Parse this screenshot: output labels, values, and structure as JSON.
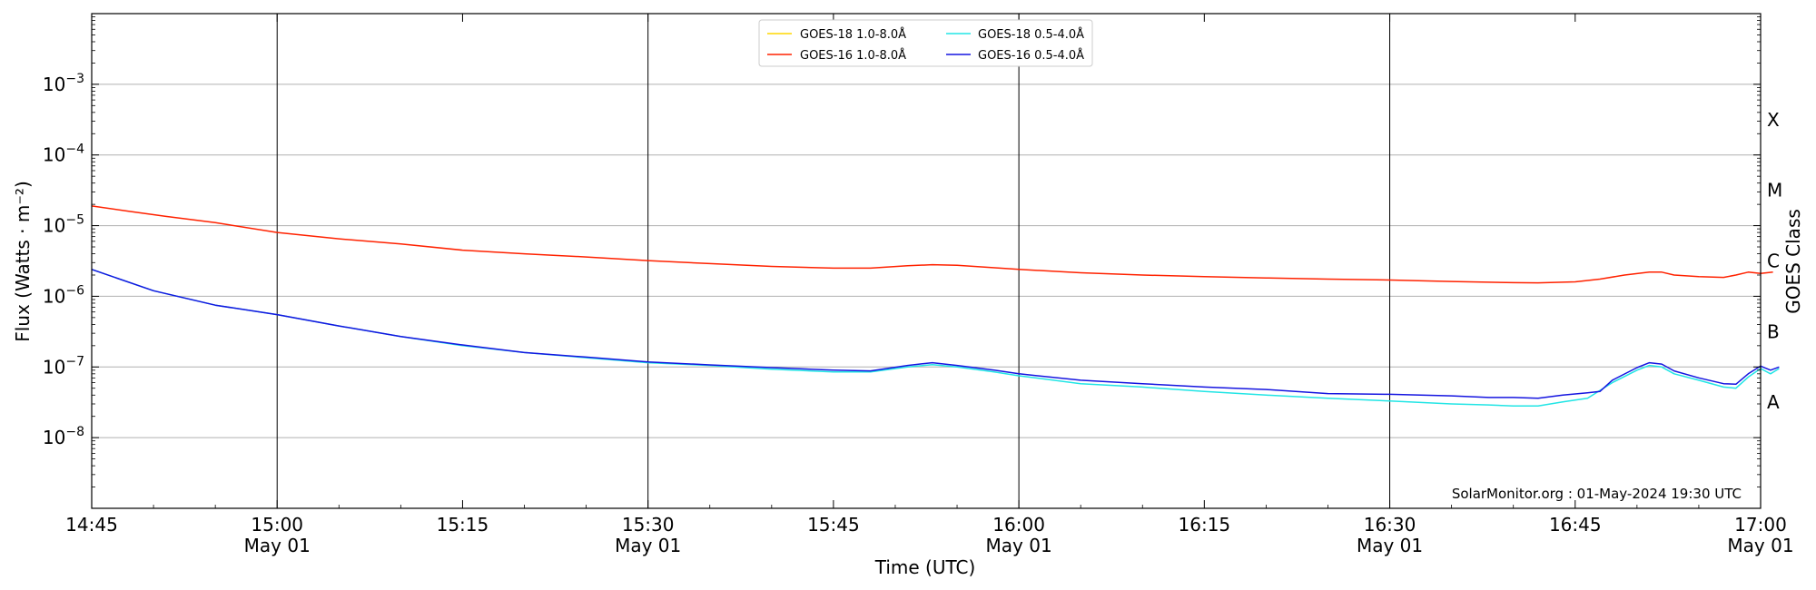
{
  "chart_data": {
    "type": "line",
    "xlabel": "Time (UTC)",
    "ylabel": "Flux (Watts · m⁻²)",
    "y2label": "GOES Class",
    "yscale": "log",
    "xlim": [
      "14:45",
      "17:00"
    ],
    "ylim": [
      1e-09,
      0.01
    ],
    "grid": "horizontal major gridlines at each decade",
    "x_ticks": [
      {
        "t": 0,
        "label": "14:45",
        "date": ""
      },
      {
        "t": 15,
        "label": "15:00",
        "date": "May 01"
      },
      {
        "t": 30,
        "label": "15:15",
        "date": ""
      },
      {
        "t": 45,
        "label": "15:30",
        "date": "May 01"
      },
      {
        "t": 60,
        "label": "15:45",
        "date": ""
      },
      {
        "t": 75,
        "label": "16:00",
        "date": "May 01"
      },
      {
        "t": 90,
        "label": "16:15",
        "date": ""
      },
      {
        "t": 105,
        "label": "16:30",
        "date": "May 01"
      },
      {
        "t": 120,
        "label": "16:45",
        "date": ""
      },
      {
        "t": 135,
        "label": "17:00",
        "date": "May 01"
      }
    ],
    "y_ticks": [
      {
        "exp": -8,
        "label": "10",
        "sup": "−8"
      },
      {
        "exp": -7,
        "label": "10",
        "sup": "−7"
      },
      {
        "exp": -6,
        "label": "10",
        "sup": "−6"
      },
      {
        "exp": -5,
        "label": "10",
        "sup": "−5"
      },
      {
        "exp": -4,
        "label": "10",
        "sup": "−4"
      },
      {
        "exp": -3,
        "label": "10",
        "sup": "−3"
      }
    ],
    "goes_classes": [
      {
        "label": "A",
        "exp": -7.5
      },
      {
        "label": "B",
        "exp": -6.5
      },
      {
        "label": "C",
        "exp": -5.5
      },
      {
        "label": "M",
        "exp": -4.5
      },
      {
        "label": "X",
        "exp": -3.5
      }
    ],
    "vertical_lines": [
      "15:00",
      "15:30",
      "16:00",
      "16:30"
    ],
    "legend_position": "top-center",
    "credit": "SolarMonitor.org : 01-May-2024 19:30 UTC",
    "series": [
      {
        "name": "GOES-18 1.0-8.0Å",
        "color": "#FFD700",
        "points": []
      },
      {
        "name": "GOES-16 1.0-8.0Å",
        "color": "#FF2200",
        "points": [
          [
            0,
            1.9e-05
          ],
          [
            3,
            1.6e-05
          ],
          [
            6,
            1.35e-05
          ],
          [
            10,
            1.1e-05
          ],
          [
            15,
            8e-06
          ],
          [
            20,
            6.5e-06
          ],
          [
            25,
            5.5e-06
          ],
          [
            30,
            4.5e-06
          ],
          [
            35,
            4e-06
          ],
          [
            40,
            3.6e-06
          ],
          [
            45,
            3.2e-06
          ],
          [
            50,
            2.9e-06
          ],
          [
            55,
            2.65e-06
          ],
          [
            60,
            2.5e-06
          ],
          [
            63,
            2.5e-06
          ],
          [
            66,
            2.7e-06
          ],
          [
            68,
            2.8e-06
          ],
          [
            70,
            2.75e-06
          ],
          [
            75,
            2.4e-06
          ],
          [
            80,
            2.15e-06
          ],
          [
            85,
            2e-06
          ],
          [
            90,
            1.9e-06
          ],
          [
            95,
            1.82e-06
          ],
          [
            100,
            1.75e-06
          ],
          [
            105,
            1.7e-06
          ],
          [
            110,
            1.62e-06
          ],
          [
            115,
            1.56e-06
          ],
          [
            117,
            1.55e-06
          ],
          [
            120,
            1.6e-06
          ],
          [
            122,
            1.75e-06
          ],
          [
            124,
            2e-06
          ],
          [
            126,
            2.2e-06
          ],
          [
            127,
            2.2e-06
          ],
          [
            128,
            2e-06
          ],
          [
            130,
            1.9e-06
          ],
          [
            132,
            1.85e-06
          ],
          [
            133,
            2e-06
          ],
          [
            134,
            2.2e-06
          ],
          [
            135,
            2.1e-06
          ],
          [
            136,
            2.2e-06
          ]
        ]
      },
      {
        "name": "GOES-18 0.5-4.0Å",
        "color": "#22E5E5",
        "points": [
          [
            0,
            2.4e-06
          ],
          [
            5,
            1.2e-06
          ],
          [
            10,
            7.5e-07
          ],
          [
            15,
            5.5e-07
          ],
          [
            20,
            3.8e-07
          ],
          [
            25,
            2.7e-07
          ],
          [
            30,
            2e-07
          ],
          [
            35,
            1.6e-07
          ],
          [
            40,
            1.35e-07
          ],
          [
            45,
            1.15e-07
          ],
          [
            50,
            1.05e-07
          ],
          [
            55,
            9.3e-08
          ],
          [
            60,
            8.5e-08
          ],
          [
            63,
            8.5e-08
          ],
          [
            66,
            1e-07
          ],
          [
            68,
            1.08e-07
          ],
          [
            70,
            1e-07
          ],
          [
            73,
            8.5e-08
          ],
          [
            75,
            7.5e-08
          ],
          [
            80,
            5.8e-08
          ],
          [
            85,
            5.2e-08
          ],
          [
            90,
            4.5e-08
          ],
          [
            95,
            4e-08
          ],
          [
            100,
            3.6e-08
          ],
          [
            105,
            3.3e-08
          ],
          [
            110,
            3e-08
          ],
          [
            113,
            2.9e-08
          ],
          [
            115,
            2.8e-08
          ],
          [
            117,
            2.8e-08
          ],
          [
            119,
            3.2e-08
          ],
          [
            121,
            3.6e-08
          ],
          [
            123,
            6e-08
          ],
          [
            125,
            9e-08
          ],
          [
            126,
            1.05e-07
          ],
          [
            127,
            1e-07
          ],
          [
            128,
            8e-08
          ],
          [
            130,
            6.5e-08
          ],
          [
            132,
            5.2e-08
          ],
          [
            133,
            5e-08
          ],
          [
            134,
            7.2e-08
          ],
          [
            135,
            9.5e-08
          ],
          [
            135.8,
            8e-08
          ],
          [
            136.5,
            9.5e-08
          ]
        ]
      },
      {
        "name": "GOES-16 0.5-4.0Å",
        "color": "#1515E0",
        "points": [
          [
            0,
            2.4e-06
          ],
          [
            5,
            1.2e-06
          ],
          [
            10,
            7.5e-07
          ],
          [
            15,
            5.5e-07
          ],
          [
            20,
            3.8e-07
          ],
          [
            25,
            2.7e-07
          ],
          [
            30,
            2.05e-07
          ],
          [
            35,
            1.6e-07
          ],
          [
            40,
            1.38e-07
          ],
          [
            45,
            1.18e-07
          ],
          [
            50,
            1.07e-07
          ],
          [
            55,
            9.8e-08
          ],
          [
            60,
            9e-08
          ],
          [
            63,
            8.8e-08
          ],
          [
            66,
            1.05e-07
          ],
          [
            68,
            1.15e-07
          ],
          [
            70,
            1.05e-07
          ],
          [
            73,
            9e-08
          ],
          [
            75,
            8e-08
          ],
          [
            80,
            6.5e-08
          ],
          [
            85,
            5.8e-08
          ],
          [
            90,
            5.2e-08
          ],
          [
            95,
            4.8e-08
          ],
          [
            100,
            4.2e-08
          ],
          [
            105,
            4.1e-08
          ],
          [
            110,
            3.9e-08
          ],
          [
            113,
            3.7e-08
          ],
          [
            115,
            3.7e-08
          ],
          [
            117,
            3.6e-08
          ],
          [
            119,
            4e-08
          ],
          [
            121,
            4.3e-08
          ],
          [
            122,
            4.5e-08
          ],
          [
            123,
            6.5e-08
          ],
          [
            125,
            9.8e-08
          ],
          [
            126,
            1.15e-07
          ],
          [
            127,
            1.1e-07
          ],
          [
            128,
            8.8e-08
          ],
          [
            130,
            7e-08
          ],
          [
            132,
            5.8e-08
          ],
          [
            133,
            5.7e-08
          ],
          [
            134,
            8e-08
          ],
          [
            135,
            1.03e-07
          ],
          [
            135.8,
            9e-08
          ],
          [
            136.5,
            1e-07
          ]
        ]
      }
    ]
  }
}
